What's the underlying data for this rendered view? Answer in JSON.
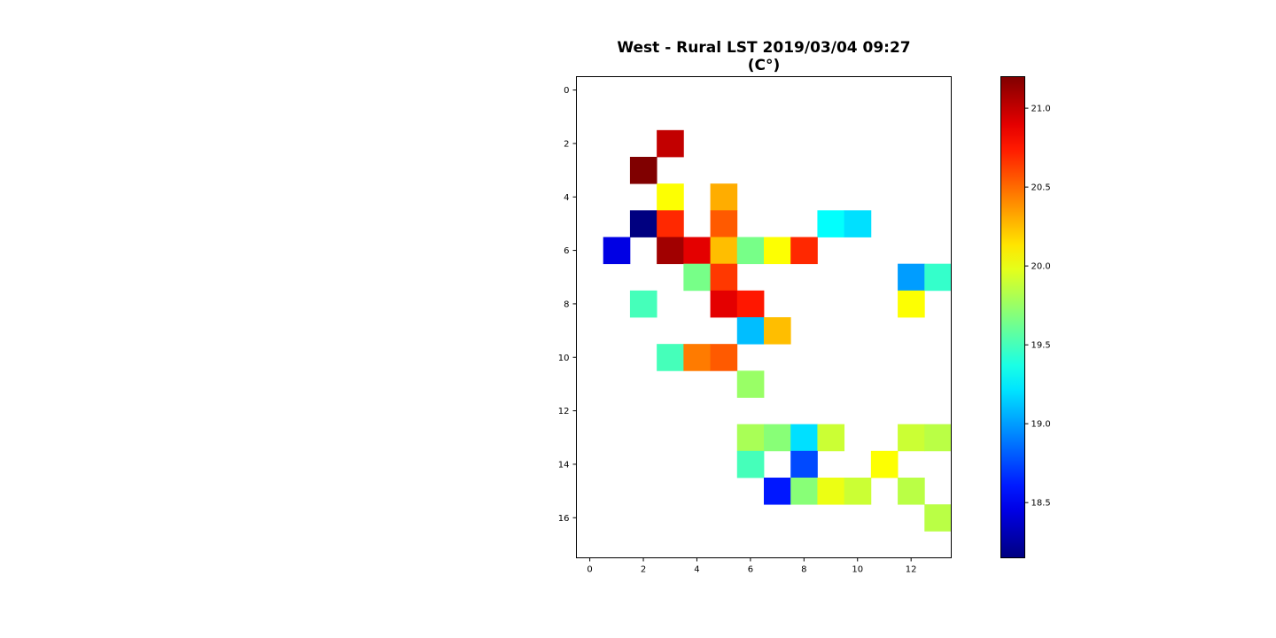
{
  "chart_data": {
    "type": "heatmap",
    "title_line1": "West - Rural LST 2019/03/04 09:27",
    "title_line2": "(C°)",
    "xlabel": "",
    "ylabel": "",
    "x_ticks": [
      "0",
      "2",
      "4",
      "6",
      "8",
      "10",
      "12"
    ],
    "y_ticks": [
      "0",
      "2",
      "4",
      "6",
      "8",
      "10",
      "12",
      "14",
      "16"
    ],
    "n_cols": 14,
    "n_rows": 18,
    "colormap": "jet",
    "vmin": 18.15,
    "vmax": 21.2,
    "colorbar_ticks": [
      "18.5",
      "19.0",
      "19.5",
      "20.0",
      "20.5",
      "21.0"
    ],
    "cells": [
      {
        "row": 2,
        "col": 3,
        "value": 21.0
      },
      {
        "row": 3,
        "col": 2,
        "value": 21.2
      },
      {
        "row": 4,
        "col": 3,
        "value": 20.05
      },
      {
        "row": 4,
        "col": 5,
        "value": 20.3
      },
      {
        "row": 5,
        "col": 2,
        "value": 18.15
      },
      {
        "row": 5,
        "col": 3,
        "value": 20.7
      },
      {
        "row": 5,
        "col": 5,
        "value": 20.55
      },
      {
        "row": 5,
        "col": 9,
        "value": 19.3
      },
      {
        "row": 5,
        "col": 10,
        "value": 19.2
      },
      {
        "row": 6,
        "col": 1,
        "value": 18.45
      },
      {
        "row": 6,
        "col": 3,
        "value": 21.1
      },
      {
        "row": 6,
        "col": 4,
        "value": 20.9
      },
      {
        "row": 6,
        "col": 5,
        "value": 20.25
      },
      {
        "row": 6,
        "col": 6,
        "value": 19.65
      },
      {
        "row": 6,
        "col": 7,
        "value": 20.05
      },
      {
        "row": 6,
        "col": 8,
        "value": 20.7
      },
      {
        "row": 6,
        "col": 9,
        "value": null
      },
      {
        "row": 7,
        "col": 4,
        "value": 19.65
      },
      {
        "row": 7,
        "col": 5,
        "value": 20.65
      },
      {
        "row": 7,
        "col": 12,
        "value": 19.0
      },
      {
        "row": 7,
        "col": 13,
        "value": 19.45
      },
      {
        "row": 8,
        "col": 2,
        "value": 19.5
      },
      {
        "row": 8,
        "col": 5,
        "value": 20.9
      },
      {
        "row": 8,
        "col": 6,
        "value": 20.75
      },
      {
        "row": 8,
        "col": 12,
        "value": 20.05
      },
      {
        "row": 9,
        "col": 6,
        "value": 19.1
      },
      {
        "row": 9,
        "col": 7,
        "value": 20.25
      },
      {
        "row": 10,
        "col": 3,
        "value": 19.5
      },
      {
        "row": 10,
        "col": 4,
        "value": 20.45
      },
      {
        "row": 10,
        "col": 5,
        "value": 20.55
      },
      {
        "row": 11,
        "col": 6,
        "value": 19.75
      },
      {
        "row": 13,
        "col": 6,
        "value": 19.8
      },
      {
        "row": 13,
        "col": 7,
        "value": 19.7
      },
      {
        "row": 13,
        "col": 8,
        "value": 19.2
      },
      {
        "row": 13,
        "col": 9,
        "value": 19.9
      },
      {
        "row": 13,
        "col": 12,
        "value": 19.9
      },
      {
        "row": 13,
        "col": 13,
        "value": 19.85
      },
      {
        "row": 14,
        "col": 6,
        "value": 19.5
      },
      {
        "row": 14,
        "col": 8,
        "value": 18.75
      },
      {
        "row": 14,
        "col": 11,
        "value": 20.05
      },
      {
        "row": 15,
        "col": 7,
        "value": 18.6
      },
      {
        "row": 15,
        "col": 8,
        "value": 19.7
      },
      {
        "row": 15,
        "col": 9,
        "value": 20.0
      },
      {
        "row": 15,
        "col": 10,
        "value": 19.9
      },
      {
        "row": 15,
        "col": 12,
        "value": 19.85
      },
      {
        "row": 16,
        "col": 13,
        "value": 19.85
      }
    ]
  }
}
